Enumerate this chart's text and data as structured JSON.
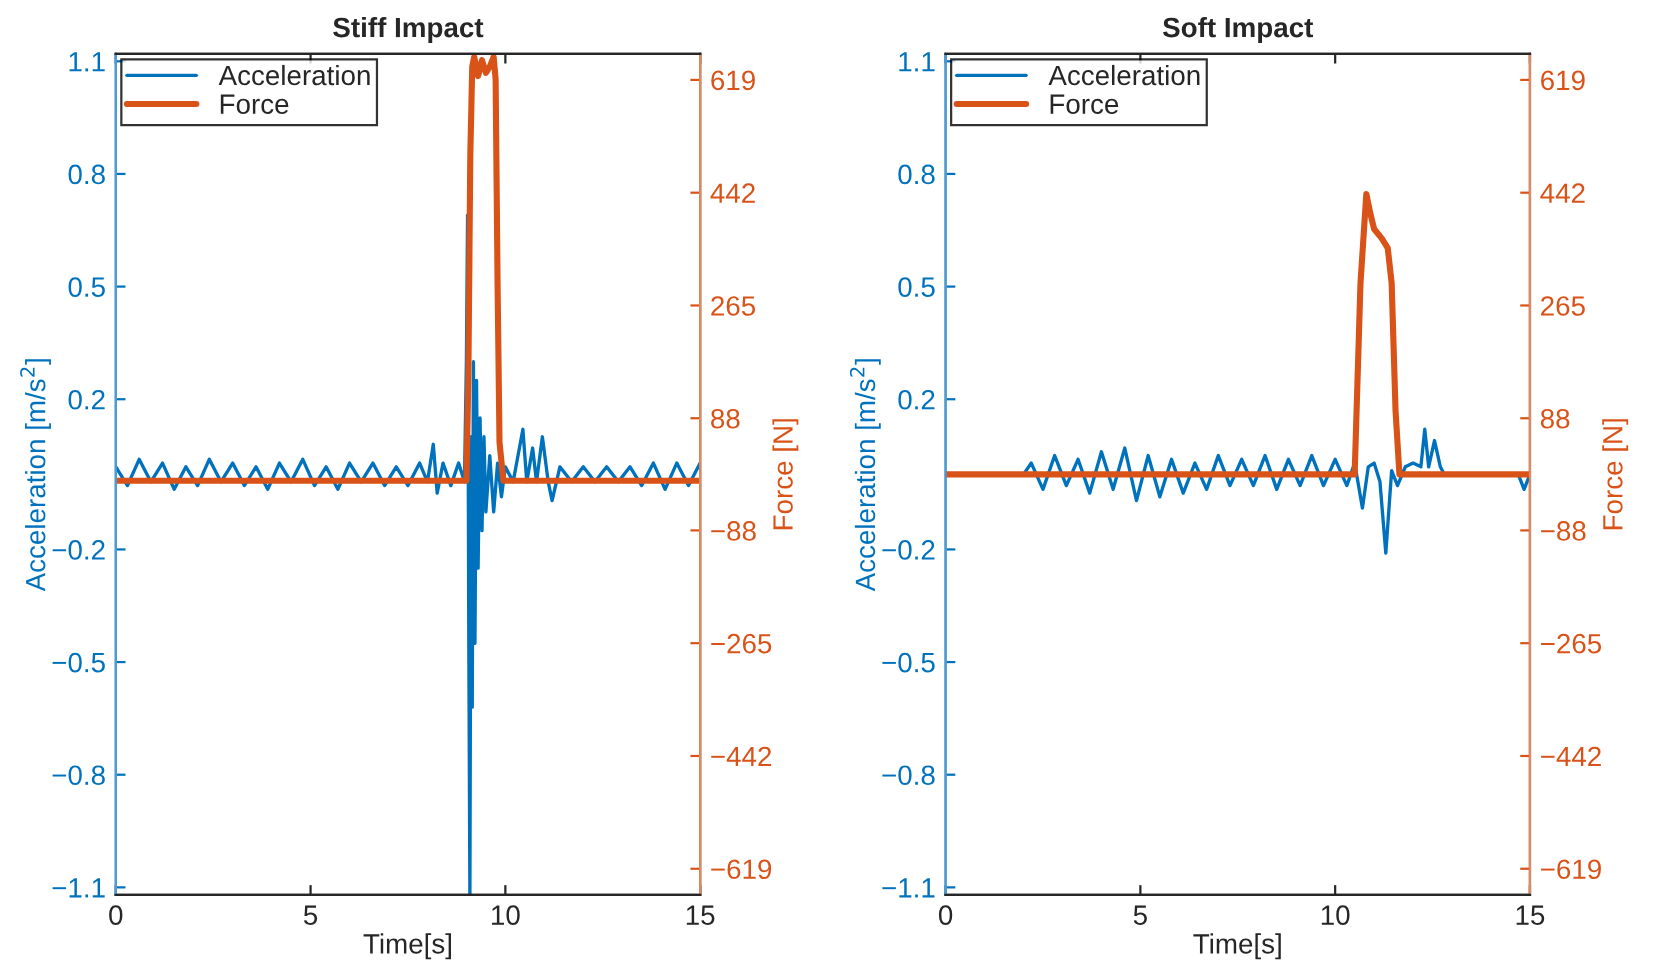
{
  "chart_data": [
    {
      "type": "line",
      "title": "Stiff Impact",
      "xlabel": "Time[s]",
      "ylabel": "Acceleration [m/s$^{2}$]",
      "y2label": "Force [N]",
      "legend": "top left",
      "xlim": [
        0,
        15
      ],
      "xticks": [
        0,
        5,
        10,
        15
      ],
      "ylim": [
        -1.12,
        1.12
      ],
      "yticks": [
        {
          "value": -1.1,
          "label": "−1.1"
        },
        {
          "value": -0.8,
          "label": "−0.8"
        },
        {
          "value": -0.5,
          "label": "−0.5"
        },
        {
          "value": -0.2,
          "label": "−0.2"
        },
        0.2,
        0.5,
        0.8,
        1.1
      ],
      "y2lim": [
        -660,
        660
      ],
      "y2ticks": [
        {
          "value": -619,
          "label": "−619"
        },
        {
          "value": -442,
          "label": "−442"
        },
        {
          "value": -265,
          "label": "−265"
        },
        {
          "value": -88,
          "label": "−88"
        },
        88,
        265,
        442,
        619
      ],
      "series": [
        {
          "name": "Acceleration",
          "color": "#0072bd",
          "axis": "y",
          "x": [
            0,
            0.3,
            0.6,
            0.9,
            1.2,
            1.5,
            1.8,
            2.1,
            2.4,
            2.7,
            3.0,
            3.3,
            3.6,
            3.9,
            4.2,
            4.5,
            4.8,
            5.1,
            5.4,
            5.7,
            6.0,
            6.3,
            6.6,
            6.9,
            7.2,
            7.5,
            7.8,
            8.0,
            8.15,
            8.25,
            8.4,
            8.6,
            8.8,
            8.95,
            9.0,
            9.03,
            9.06,
            9.09,
            9.12,
            9.15,
            9.18,
            9.22,
            9.26,
            9.3,
            9.35,
            9.4,
            9.45,
            9.5,
            9.6,
            9.7,
            9.8,
            9.9,
            10.0,
            10.2,
            10.45,
            10.55,
            10.7,
            10.8,
            10.95,
            11.1,
            11.2,
            11.4,
            11.7,
            12.0,
            12.3,
            12.6,
            12.9,
            13.2,
            13.5,
            13.8,
            14.1,
            14.4,
            14.7,
            15.0
          ],
          "values": [
            0.02,
            -0.03,
            0.04,
            -0.02,
            0.03,
            -0.04,
            0.02,
            -0.03,
            0.04,
            -0.02,
            0.03,
            -0.03,
            0.02,
            -0.04,
            0.03,
            -0.02,
            0.04,
            -0.03,
            0.02,
            -0.04,
            0.03,
            -0.02,
            0.03,
            -0.03,
            0.02,
            -0.03,
            0.03,
            -0.02,
            0.08,
            -0.05,
            0.03,
            -0.03,
            0.03,
            -0.02,
            0.3,
            0.69,
            -0.4,
            -1.12,
            0.1,
            -0.62,
            0.3,
            -0.45,
            0.25,
            -0.25,
            0.15,
            -0.15,
            0.1,
            -0.1,
            0.05,
            -0.1,
            0.03,
            -0.06,
            0.02,
            -0.02,
            0.12,
            -0.02,
            0.07,
            -0.02,
            0.1,
            -0.02,
            -0.07,
            0.02,
            -0.02,
            0.02,
            -0.02,
            0.02,
            -0.02,
            0.02,
            -0.03,
            0.03,
            -0.04,
            0.03,
            -0.03,
            0.03
          ]
        },
        {
          "name": "Force",
          "color": "#d95319",
          "axis": "y2",
          "x": [
            0,
            9.0,
            9.05,
            9.1,
            9.15,
            9.2,
            9.3,
            9.4,
            9.5,
            9.6,
            9.7,
            9.75,
            9.8,
            9.85,
            9.95,
            15
          ],
          "values": [
            -10,
            -10,
            150,
            500,
            640,
            655,
            625,
            650,
            630,
            640,
            655,
            620,
            300,
            50,
            -10,
            -10
          ]
        }
      ]
    },
    {
      "type": "line",
      "title": "Soft Impact",
      "xlabel": "Time[s]",
      "ylabel": "Acceleration [m/s$^{2}$]",
      "y2label": "Force [N]",
      "legend": "top left",
      "xlim": [
        0,
        15
      ],
      "xticks": [
        0,
        5,
        10,
        15
      ],
      "ylim": [
        -1.12,
        1.12
      ],
      "yticks": [
        {
          "value": -1.1,
          "label": "−1.1"
        },
        {
          "value": -0.8,
          "label": "−0.8"
        },
        {
          "value": -0.5,
          "label": "−0.5"
        },
        {
          "value": -0.2,
          "label": "−0.2"
        },
        0.2,
        0.5,
        0.8,
        1.1
      ],
      "y2lim": [
        -660,
        660
      ],
      "y2ticks": [
        {
          "value": -619,
          "label": "−619"
        },
        {
          "value": -442,
          "label": "−442"
        },
        {
          "value": -265,
          "label": "−265"
        },
        {
          "value": -88,
          "label": "−88"
        },
        88,
        265,
        442,
        619
      ],
      "series": [
        {
          "name": "Acceleration",
          "color": "#0072bd",
          "axis": "y",
          "x": [
            0,
            2.0,
            2.2,
            2.5,
            2.8,
            3.1,
            3.4,
            3.7,
            4.0,
            4.3,
            4.6,
            4.9,
            5.2,
            5.5,
            5.8,
            6.1,
            6.4,
            6.7,
            7.0,
            7.3,
            7.6,
            7.9,
            8.2,
            8.5,
            8.8,
            9.1,
            9.4,
            9.7,
            10.0,
            10.3,
            10.5,
            10.7,
            10.85,
            11.0,
            11.15,
            11.3,
            11.45,
            11.6,
            11.8,
            12.0,
            12.2,
            12.3,
            12.4,
            12.55,
            12.7,
            12.8,
            14.7,
            14.85,
            15.0
          ],
          "values": [
            0,
            0,
            0.03,
            -0.04,
            0.05,
            -0.03,
            0.04,
            -0.05,
            0.06,
            -0.04,
            0.07,
            -0.07,
            0.05,
            -0.06,
            0.04,
            -0.05,
            0.03,
            -0.04,
            0.05,
            -0.03,
            0.04,
            -0.03,
            0.05,
            -0.04,
            0.04,
            -0.03,
            0.05,
            -0.03,
            0.04,
            -0.03,
            0.03,
            -0.09,
            0.02,
            0.03,
            -0.02,
            -0.21,
            0.01,
            -0.03,
            0.02,
            0.03,
            0.02,
            0.12,
            0.02,
            0.09,
            0.02,
            0,
            0,
            -0.04,
            0
          ]
        },
        {
          "name": "Force",
          "color": "#d95319",
          "axis": "y2",
          "x": [
            0,
            10.5,
            10.65,
            10.8,
            10.9,
            11.0,
            11.2,
            11.35,
            11.45,
            11.55,
            11.65,
            15
          ],
          "values": [
            0,
            0,
            300,
            440,
            410,
            385,
            370,
            355,
            300,
            100,
            0,
            0
          ]
        }
      ]
    }
  ]
}
